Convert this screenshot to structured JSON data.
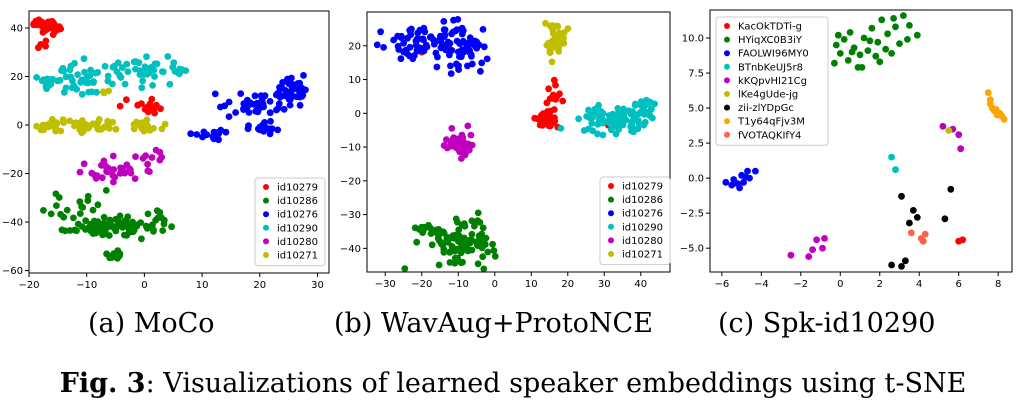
{
  "figure": {
    "label": "Fig. 3",
    "caption": ": Visualizations of learned speaker embeddings using t-SNE"
  },
  "chart_data": [
    {
      "type": "scatter",
      "subcaption": "(a) MoCo",
      "xlim": [
        -20,
        32
      ],
      "ylim": [
        -61,
        47
      ],
      "xticks": [
        -20,
        -10,
        0,
        10,
        20,
        30
      ],
      "yticks": [
        -60,
        -40,
        -20,
        0,
        20,
        40
      ],
      "legend_position": "lower-right",
      "series": [
        {
          "name": "id10279",
          "color": "#ff0000",
          "clusters": [
            {
              "cx": -17,
              "cy": 41,
              "sx": 1.2,
              "sy": 1.5,
              "n": 40
            },
            {
              "cx": -17.5,
              "cy": 33,
              "sx": 0.5,
              "sy": 0.8,
              "n": 4
            },
            {
              "cx": 0,
              "cy": 8,
              "sx": 2.2,
              "sy": 2.2,
              "n": 16
            }
          ]
        },
        {
          "name": "id10286",
          "color": "#008000",
          "clusters": [
            {
              "cx": -7,
              "cy": -42,
              "sx": 4.5,
              "sy": 2,
              "n": 90
            },
            {
              "cx": -12,
              "cy": -33,
              "sx": 2,
              "sy": 2.5,
              "n": 16
            },
            {
              "cx": -5,
              "cy": -54,
              "sx": 1.2,
              "sy": 0.8,
              "n": 12
            },
            {
              "cx": 2,
              "cy": -38,
              "sx": 1.5,
              "sy": 3,
              "n": 8
            }
          ]
        },
        {
          "name": "id10276",
          "color": "#0000ff",
          "clusters": [
            {
              "cx": 26,
              "cy": 14,
              "sx": 1.6,
              "sy": 3,
              "n": 40
            },
            {
              "cx": 18,
              "cy": 8,
              "sx": 3,
              "sy": 2.5,
              "n": 35
            },
            {
              "cx": 12,
              "cy": -4,
              "sx": 1.5,
              "sy": 1.2,
              "n": 18
            },
            {
              "cx": 21,
              "cy": -1,
              "sx": 1.5,
              "sy": 1.5,
              "n": 14
            }
          ]
        },
        {
          "name": "id10290",
          "color": "#00bfbf",
          "clusters": [
            {
              "cx": -8,
              "cy": 20,
              "sx": 6,
              "sy": 3.5,
              "n": 60
            },
            {
              "cx": 0,
              "cy": 23,
              "sx": 2,
              "sy": 2,
              "n": 25
            },
            {
              "cx": 5,
              "cy": 22,
              "sx": 1.2,
              "sy": 0.8,
              "n": 8
            },
            {
              "cx": -17,
              "cy": 18,
              "sx": 1,
              "sy": 1.5,
              "n": 10
            }
          ]
        },
        {
          "name": "id10280",
          "color": "#bf00bf",
          "clusters": [
            {
              "cx": -5,
              "cy": -18,
              "sx": 3.5,
              "sy": 2.5,
              "n": 35
            },
            {
              "cx": 2,
              "cy": -12,
              "sx": 0.6,
              "sy": 1.5,
              "n": 5
            }
          ]
        },
        {
          "name": "id10271",
          "color": "#bfbf00",
          "clusters": [
            {
              "cx": -10,
              "cy": 0,
              "sx": 5,
              "sy": 1.2,
              "n": 50
            },
            {
              "cx": -16.5,
              "cy": 0,
              "sx": 0.8,
              "sy": 1.5,
              "n": 12
            },
            {
              "cx": 1.5,
              "cy": 0,
              "sx": 1.2,
              "sy": 2,
              "n": 8
            },
            {
              "cx": -7,
              "cy": 14,
              "sx": 0.5,
              "sy": 0.5,
              "n": 3
            }
          ]
        }
      ]
    },
    {
      "type": "scatter",
      "subcaption": "(b) WavAug+ProtoNCE",
      "xlim": [
        -35,
        48
      ],
      "ylim": [
        -47,
        30
      ],
      "xticks": [
        -30,
        -20,
        -10,
        0,
        10,
        20,
        30,
        40
      ],
      "yticks": [
        -40,
        -30,
        -20,
        -10,
        0,
        10,
        20
      ],
      "legend_position": "lower-right",
      "series": [
        {
          "name": "id10279",
          "color": "#ff0000",
          "clusters": [
            {
              "cx": 14,
              "cy": -2,
              "sx": 1.4,
              "sy": 1.3,
              "n": 45
            },
            {
              "cx": 16,
              "cy": 5,
              "sx": 1,
              "sy": 2.2,
              "n": 12
            },
            {
              "cx": -20,
              "cy": 19,
              "sx": 0.5,
              "sy": 0.5,
              "n": 2
            },
            {
              "cx": 31,
              "cy": -4,
              "sx": 0.3,
              "sy": 0.3,
              "n": 1
            }
          ]
        },
        {
          "name": "id10286",
          "color": "#008000",
          "clusters": [
            {
              "cx": -10,
              "cy": -39,
              "sx": 4.5,
              "sy": 2.6,
              "n": 95
            },
            {
              "cx": -19,
              "cy": -34,
              "sx": 1.2,
              "sy": 1.5,
              "n": 10
            },
            {
              "cx": -5,
              "cy": -32,
              "sx": 1,
              "sy": 1,
              "n": 6
            }
          ]
        },
        {
          "name": "id10276",
          "color": "#0000ff",
          "clusters": [
            {
              "cx": -22,
              "cy": 20,
              "sx": 4.5,
              "sy": 2.5,
              "n": 55
            },
            {
              "cx": -8,
              "cy": 19,
              "sx": 3,
              "sy": 3.5,
              "n": 50
            },
            {
              "cx": -14,
              "cy": 25,
              "sx": 3,
              "sy": 1.5,
              "n": 12
            }
          ]
        },
        {
          "name": "id10290",
          "color": "#00bfbf",
          "clusters": [
            {
              "cx": 33,
              "cy": -2,
              "sx": 4.5,
              "sy": 2,
              "n": 70
            },
            {
              "cx": 41,
              "cy": 2,
              "sx": 1.5,
              "sy": 1.2,
              "n": 20
            },
            {
              "cx": 27,
              "cy": 0,
              "sx": 1.2,
              "sy": 1,
              "n": 10
            }
          ]
        },
        {
          "name": "id10280",
          "color": "#bf00bf",
          "clusters": [
            {
              "cx": -10,
              "cy": -9,
              "sx": 2.2,
              "sy": 2,
              "n": 38
            }
          ]
        },
        {
          "name": "id10271",
          "color": "#bfbf00",
          "clusters": [
            {
              "cx": 17,
              "cy": 21,
              "sx": 1.5,
              "sy": 2.8,
              "n": 38
            }
          ]
        }
      ]
    },
    {
      "type": "scatter",
      "subcaption": "(c) Spk-id10290",
      "xlim": [
        -6.6,
        8.7
      ],
      "ylim": [
        -6.7,
        12.0
      ],
      "xticks": [
        -6,
        -4,
        -2,
        0,
        2,
        4,
        6,
        8
      ],
      "yticks": [
        -5.0,
        -2.5,
        0.0,
        2.5,
        5.0,
        7.5,
        10.0
      ],
      "yticklabels": [
        "−5.0",
        "−2.5",
        "0.0",
        "2.5",
        "5.0",
        "7.5",
        "10.0"
      ],
      "legend_position": "upper-left",
      "series": [
        {
          "name": "KacOkTDTi-g",
          "color": "#ff0000",
          "points": [
            [
              6.0,
              -4.5
            ],
            [
              6.2,
              -4.4
            ]
          ]
        },
        {
          "name": "HYiqXC0B3iY",
          "color": "#008000",
          "points": [
            [
              -0.3,
              8.2
            ],
            [
              -0.2,
              9.5
            ],
            [
              0.0,
              8.9
            ],
            [
              0.2,
              9.9
            ],
            [
              0.4,
              8.4
            ],
            [
              0.5,
              10.4
            ],
            [
              0.7,
              9.3
            ],
            [
              0.9,
              7.9
            ],
            [
              1.0,
              8.8
            ],
            [
              1.2,
              10.0
            ],
            [
              1.4,
              9.1
            ],
            [
              1.6,
              10.7
            ],
            [
              1.8,
              8.7
            ],
            [
              1.9,
              9.7
            ],
            [
              2.1,
              11.3
            ],
            [
              2.3,
              9.2
            ],
            [
              2.4,
              10.3
            ],
            [
              2.6,
              8.9
            ],
            [
              2.8,
              10.8
            ],
            [
              3.0,
              9.6
            ],
            [
              3.2,
              11.6
            ],
            [
              3.4,
              9.9
            ],
            [
              3.5,
              10.9
            ],
            [
              3.9,
              10.2
            ],
            [
              -0.1,
              10.2
            ],
            [
              1.1,
              7.9
            ],
            [
              2.0,
              8.3
            ],
            [
              2.7,
              11.4
            ],
            [
              0.6,
              9.0
            ],
            [
              1.5,
              9.8
            ]
          ]
        },
        {
          "name": "FAOLWI96MY0",
          "color": "#0000ff",
          "points": [
            [
              -5.8,
              -0.3
            ],
            [
              -5.5,
              -0.5
            ],
            [
              -5.4,
              -0.1
            ],
            [
              -5.2,
              -0.4
            ],
            [
              -5.0,
              0.2
            ],
            [
              -4.9,
              -0.3
            ],
            [
              -4.7,
              0.5
            ],
            [
              -4.6,
              0.0
            ],
            [
              -4.3,
              0.5
            ],
            [
              -5.1,
              -0.7
            ],
            [
              -4.8,
              0.1
            ]
          ]
        },
        {
          "name": "BTnbKeUJ5r8",
          "color": "#00bfbf",
          "points": [
            [
              2.6,
              1.5
            ],
            [
              2.8,
              0.6
            ]
          ]
        },
        {
          "name": "kKQpvHI21Cg",
          "color": "#bf00bf",
          "points": [
            [
              -1.2,
              -4.4
            ],
            [
              -0.9,
              -5.0
            ],
            [
              -1.6,
              -5.6
            ],
            [
              -2.5,
              -5.5
            ],
            [
              -1.4,
              -5.1
            ],
            [
              -0.8,
              -4.3
            ],
            [
              5.2,
              3.7
            ],
            [
              5.7,
              3.5
            ],
            [
              6.0,
              3.1
            ],
            [
              6.1,
              2.1
            ]
          ]
        },
        {
          "name": "lKe4gUde-jg",
          "color": "#bfbf00",
          "points": [
            [
              5.5,
              3.4
            ]
          ]
        },
        {
          "name": "zii-zlYDpGc",
          "color": "#000000",
          "points": [
            [
              3.1,
              -1.3
            ],
            [
              3.7,
              -2.3
            ],
            [
              3.9,
              -2.8
            ],
            [
              3.5,
              -3.2
            ],
            [
              5.3,
              -2.9
            ],
            [
              5.6,
              -0.8
            ],
            [
              2.6,
              -6.2
            ],
            [
              3.1,
              -6.3
            ],
            [
              3.3,
              -5.9
            ]
          ]
        },
        {
          "name": "T1y64qFjv3M",
          "color": "#ffa500",
          "points": [
            [
              7.5,
              6.1
            ],
            [
              7.6,
              5.6
            ],
            [
              7.7,
              5.0
            ],
            [
              7.8,
              4.8
            ],
            [
              7.9,
              4.9
            ],
            [
              8.0,
              4.7
            ],
            [
              8.1,
              4.6
            ],
            [
              8.2,
              4.4
            ],
            [
              8.3,
              4.2
            ],
            [
              7.6,
              5.3
            ],
            [
              7.95,
              4.5
            ]
          ]
        },
        {
          "name": "fVOTAQKIfY4",
          "color": "#ff6347",
          "points": [
            [
              3.6,
              -3.9
            ],
            [
              4.1,
              -4.3
            ],
            [
              4.3,
              -4.0
            ],
            [
              4.2,
              -4.5
            ]
          ]
        }
      ]
    }
  ]
}
